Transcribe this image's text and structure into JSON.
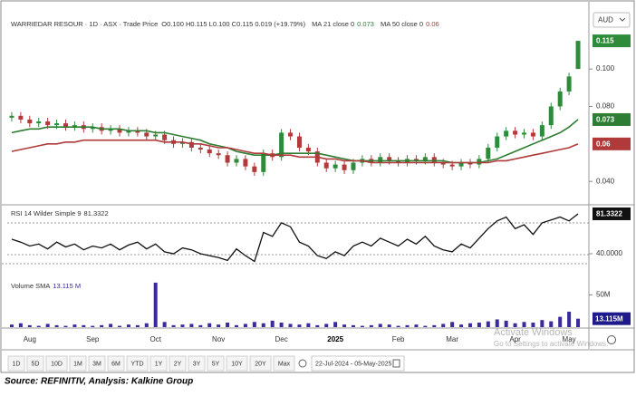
{
  "chart_data": [
    {
      "type": "candlestick",
      "title": "WARRIEDAR RESOUR · 1D · ASX · Trade Price",
      "ohlc_text": "O0.100 H0.115 L0.100 C0.115 0.019 (+19.79%)",
      "currency": "AUD",
      "categories": [
        null,
        null,
        "Aug",
        null,
        null,
        null,
        null,
        null,
        null,
        "Sep",
        null,
        null,
        null,
        null,
        null,
        null,
        "Oct",
        null,
        null,
        null,
        null,
        null,
        null,
        "Nov",
        null,
        null,
        null,
        null,
        null,
        null,
        "Dec",
        null,
        null,
        null,
        null,
        null,
        "2025",
        null,
        null,
        null,
        null,
        null,
        null,
        "Feb",
        null,
        null,
        null,
        null,
        null,
        "Mar",
        null,
        null,
        null,
        null,
        null,
        null,
        "Apr",
        null,
        null,
        null,
        null,
        null,
        "May",
        null
      ],
      "open": [
        0.074,
        0.075,
        0.073,
        0.071,
        0.072,
        0.07,
        0.071,
        0.069,
        0.07,
        0.068,
        0.069,
        0.067,
        0.068,
        0.066,
        0.067,
        0.066,
        0.064,
        0.065,
        0.062,
        0.06,
        0.061,
        0.058,
        0.057,
        0.055,
        0.054,
        0.05,
        0.052,
        0.048,
        0.045,
        0.055,
        0.053,
        0.066,
        0.064,
        0.058,
        0.056,
        0.05,
        0.047,
        0.049,
        0.046,
        0.05,
        0.052,
        0.05,
        0.053,
        0.051,
        0.05,
        0.052,
        0.051,
        0.053,
        0.05,
        0.049,
        0.048,
        0.05,
        0.049,
        0.052,
        0.058,
        0.064,
        0.067,
        0.065,
        0.066,
        0.064,
        0.07,
        0.08,
        0.088,
        0.1
      ],
      "high": [
        0.077,
        0.077,
        0.075,
        0.074,
        0.074,
        0.073,
        0.073,
        0.072,
        0.072,
        0.071,
        0.071,
        0.07,
        0.07,
        0.069,
        0.069,
        0.068,
        0.067,
        0.067,
        0.064,
        0.063,
        0.063,
        0.06,
        0.059,
        0.057,
        0.056,
        0.054,
        0.054,
        0.05,
        0.057,
        0.057,
        0.068,
        0.068,
        0.066,
        0.06,
        0.058,
        0.052,
        0.051,
        0.051,
        0.052,
        0.054,
        0.054,
        0.055,
        0.055,
        0.053,
        0.054,
        0.054,
        0.055,
        0.055,
        0.052,
        0.051,
        0.052,
        0.052,
        0.054,
        0.06,
        0.066,
        0.069,
        0.069,
        0.068,
        0.068,
        0.072,
        0.082,
        0.09,
        0.098,
        0.115
      ],
      "low": [
        0.072,
        0.071,
        0.069,
        0.069,
        0.068,
        0.068,
        0.067,
        0.067,
        0.066,
        0.066,
        0.065,
        0.065,
        0.064,
        0.064,
        0.064,
        0.062,
        0.062,
        0.06,
        0.058,
        0.058,
        0.056,
        0.055,
        0.053,
        0.052,
        0.048,
        0.048,
        0.046,
        0.043,
        0.043,
        0.051,
        0.051,
        0.062,
        0.056,
        0.054,
        0.048,
        0.045,
        0.045,
        0.044,
        0.044,
        0.048,
        0.048,
        0.048,
        0.049,
        0.048,
        0.048,
        0.049,
        0.049,
        0.048,
        0.047,
        0.046,
        0.046,
        0.047,
        0.047,
        0.05,
        0.056,
        0.062,
        0.063,
        0.063,
        0.062,
        0.062,
        0.068,
        0.078,
        0.086,
        0.1
      ],
      "close": [
        0.075,
        0.073,
        0.071,
        0.072,
        0.07,
        0.071,
        0.069,
        0.07,
        0.068,
        0.069,
        0.067,
        0.068,
        0.066,
        0.067,
        0.066,
        0.064,
        0.065,
        0.062,
        0.06,
        0.061,
        0.058,
        0.057,
        0.055,
        0.054,
        0.05,
        0.052,
        0.048,
        0.045,
        0.055,
        0.053,
        0.066,
        0.064,
        0.058,
        0.056,
        0.05,
        0.047,
        0.049,
        0.046,
        0.05,
        0.052,
        0.05,
        0.053,
        0.051,
        0.05,
        0.052,
        0.051,
        0.053,
        0.05,
        0.049,
        0.048,
        0.05,
        0.049,
        0.052,
        0.058,
        0.064,
        0.067,
        0.065,
        0.066,
        0.064,
        0.07,
        0.08,
        0.088,
        0.096,
        0.115
      ],
      "up_color": "#2e8b3a",
      "down_color": "#b23a3a",
      "series": [
        {
          "name": "MA 21 close 0",
          "color": "#2e7d32",
          "values": [
            0.066,
            0.067,
            0.068,
            0.068,
            0.069,
            0.069,
            0.069,
            0.069,
            0.069,
            0.069,
            0.068,
            0.068,
            0.068,
            0.067,
            0.067,
            0.067,
            0.066,
            0.066,
            0.065,
            0.064,
            0.063,
            0.062,
            0.06,
            0.059,
            0.058,
            0.056,
            0.055,
            0.054,
            0.054,
            0.054,
            0.055,
            0.055,
            0.055,
            0.055,
            0.055,
            0.054,
            0.053,
            0.052,
            0.051,
            0.051,
            0.051,
            0.051,
            0.051,
            0.051,
            0.051,
            0.051,
            0.051,
            0.051,
            0.051,
            0.05,
            0.05,
            0.05,
            0.05,
            0.051,
            0.052,
            0.054,
            0.056,
            0.058,
            0.06,
            0.062,
            0.064,
            0.066,
            0.069,
            0.073
          ]
        },
        {
          "name": "MA 50 close 0",
          "color": "#b03a3a",
          "values": [
            0.056,
            0.057,
            0.058,
            0.059,
            0.06,
            0.06,
            0.061,
            0.061,
            0.062,
            0.062,
            0.062,
            0.062,
            0.062,
            0.062,
            0.062,
            0.062,
            0.062,
            0.061,
            0.061,
            0.061,
            0.06,
            0.06,
            0.059,
            0.058,
            0.058,
            0.057,
            0.056,
            0.055,
            0.055,
            0.054,
            0.054,
            0.054,
            0.053,
            0.053,
            0.053,
            0.052,
            0.052,
            0.051,
            0.051,
            0.051,
            0.05,
            0.05,
            0.05,
            0.05,
            0.05,
            0.05,
            0.05,
            0.05,
            0.05,
            0.05,
            0.05,
            0.05,
            0.05,
            0.05,
            0.051,
            0.051,
            0.052,
            0.053,
            0.054,
            0.055,
            0.056,
            0.057,
            0.058,
            0.06
          ]
        }
      ],
      "ylim": [
        0.028,
        0.131
      ],
      "yticks": [
        {
          "value": 0.1,
          "label": "0.100"
        },
        {
          "value": 0.08,
          "label": "0.080"
        },
        {
          "value": 0.04,
          "label": "0.040"
        }
      ],
      "grid": false
    },
    {
      "type": "line",
      "title": "RSI 14 Wilder Simple 9",
      "color": "#111111",
      "values": [
        55,
        52,
        48,
        50,
        45,
        52,
        47,
        50,
        44,
        48,
        46,
        50,
        44,
        49,
        52,
        45,
        50,
        42,
        40,
        46,
        44,
        40,
        38,
        36,
        33,
        45,
        38,
        32,
        62,
        58,
        72,
        68,
        52,
        48,
        38,
        35,
        42,
        38,
        48,
        52,
        48,
        56,
        52,
        48,
        55,
        50,
        58,
        48,
        44,
        42,
        50,
        46,
        56,
        66,
        74,
        78,
        66,
        70,
        60,
        72,
        75,
        78,
        74,
        81.3322
      ],
      "ylim": [
        30.6,
        88.8
      ],
      "yticks": [
        {
          "value": 40,
          "label": "40.0000"
        }
      ],
      "grid": false
    },
    {
      "type": "bar",
      "title": "Volume SMA",
      "legend_label": "13.115 M",
      "last_label": "13.115M",
      "color": "#3a2aa0",
      "values": [
        4,
        6,
        3,
        2,
        5,
        3,
        2,
        4,
        3,
        2,
        3,
        5,
        2,
        4,
        3,
        6,
        69,
        8,
        3,
        4,
        5,
        3,
        6,
        4,
        7,
        3,
        5,
        8,
        6,
        10,
        7,
        5,
        4,
        6,
        3,
        5,
        8,
        4,
        3,
        2,
        3,
        5,
        4,
        2,
        3,
        4,
        2,
        3,
        5,
        8,
        4,
        6,
        7,
        9,
        12,
        10,
        6,
        8,
        7,
        11,
        9,
        16,
        24,
        13.115
      ],
      "ylim": [
        0,
        97
      ],
      "yticks": [
        {
          "value": 50,
          "label": "50M"
        }
      ],
      "grid": false
    }
  ],
  "toolbar": {
    "ranges": [
      "1D",
      "5D",
      "10D",
      "1M",
      "3M",
      "6M",
      "YTD",
      "1Y",
      "2Y",
      "3Y",
      "5Y",
      "10Y",
      "20Y",
      "Max"
    ],
    "date_range": "22-Jul-2024 - 05-May-2025"
  },
  "watermark": {
    "title": "Activate Windows",
    "text": "Go to Settings to activate Windows."
  },
  "source": "Source: REFINITIV, Analysis: Kalkine Group"
}
